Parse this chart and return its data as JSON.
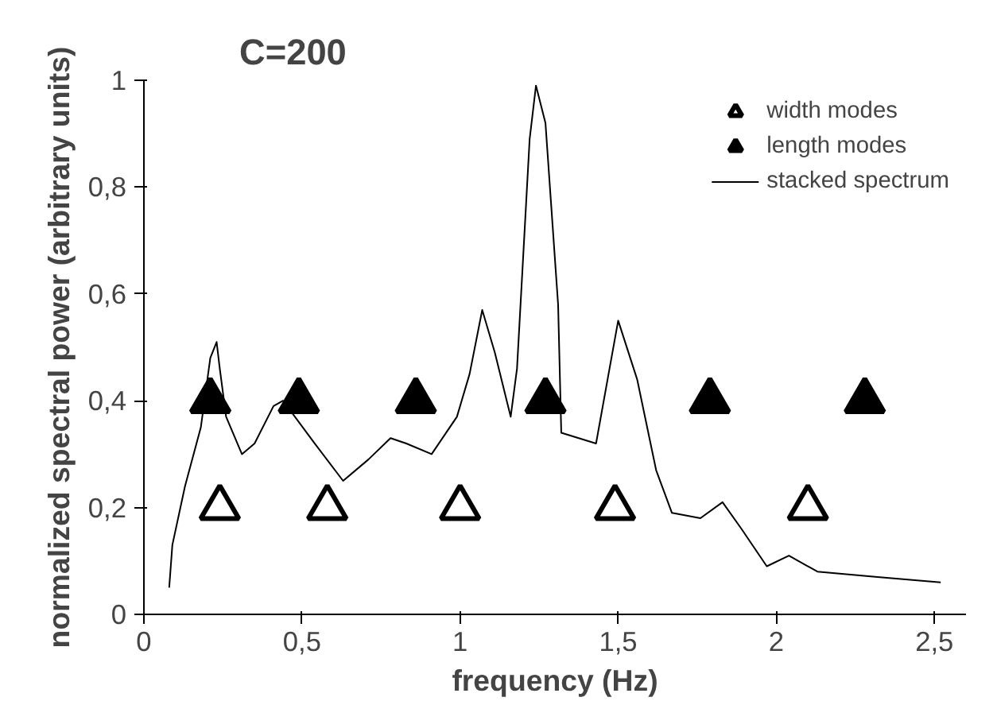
{
  "chart_data": {
    "type": "line",
    "title": "C=200",
    "xlabel": "frequency (Hz)",
    "ylabel": "normalized spectral power (arbitrary units)",
    "xlim": [
      0,
      2.6
    ],
    "ylim": [
      0,
      1
    ],
    "xticks": [
      0,
      {
        "value": 0.5,
        "label": "0,5"
      },
      1,
      {
        "value": 1.5,
        "label": "1,5"
      },
      2,
      {
        "value": 2.5,
        "label": "2,5"
      }
    ],
    "yticks": [
      0,
      {
        "value": 0.2,
        "label": "0,2"
      },
      {
        "value": 0.4,
        "label": "0,4"
      },
      {
        "value": 0.6,
        "label": "0,6"
      },
      {
        "value": 0.8,
        "label": "0,8"
      },
      1
    ],
    "grid": false,
    "legend": "top right",
    "series": [
      {
        "name": "width modes",
        "type": "scatter",
        "marker": "triangle",
        "color": "#ffffff",
        "x": [
          0.24,
          0.58,
          1.0,
          1.49,
          2.1
        ],
        "values": [
          0.2,
          0.2,
          0.2,
          0.2,
          0.2
        ]
      },
      {
        "name": "length modes",
        "type": "scatter",
        "marker": "triangle",
        "color": "#000000",
        "x": [
          0.21,
          0.49,
          0.86,
          1.27,
          1.79,
          2.28
        ],
        "values": [
          0.4,
          0.4,
          0.4,
          0.4,
          0.4,
          0.4
        ]
      },
      {
        "name": "stacked spectrum",
        "marker": "none",
        "color": "#000000",
        "x": [
          0.08,
          0.09,
          0.13,
          0.18,
          0.21,
          0.23,
          0.24,
          0.26,
          0.31,
          0.35,
          0.41,
          0.44,
          0.54,
          0.63,
          0.71,
          0.78,
          0.83,
          0.91,
          0.99,
          1.03,
          1.07,
          1.11,
          1.16,
          1.18,
          1.22,
          1.24,
          1.27,
          1.31,
          1.32,
          1.43,
          1.5,
          1.56,
          1.62,
          1.67,
          1.76,
          1.83,
          1.89,
          1.97,
          2.04,
          2.13,
          2.32,
          2.52
        ],
        "values": [
          0.05,
          0.13,
          0.24,
          0.35,
          0.48,
          0.51,
          0.46,
          0.37,
          0.3,
          0.32,
          0.39,
          0.4,
          0.32,
          0.25,
          0.29,
          0.33,
          0.32,
          0.3,
          0.37,
          0.45,
          0.57,
          0.49,
          0.37,
          0.46,
          0.89,
          0.99,
          0.92,
          0.58,
          0.34,
          0.32,
          0.55,
          0.44,
          0.27,
          0.19,
          0.18,
          0.21,
          0.16,
          0.09,
          0.11,
          0.08,
          0.07,
          0.06
        ]
      }
    ]
  }
}
